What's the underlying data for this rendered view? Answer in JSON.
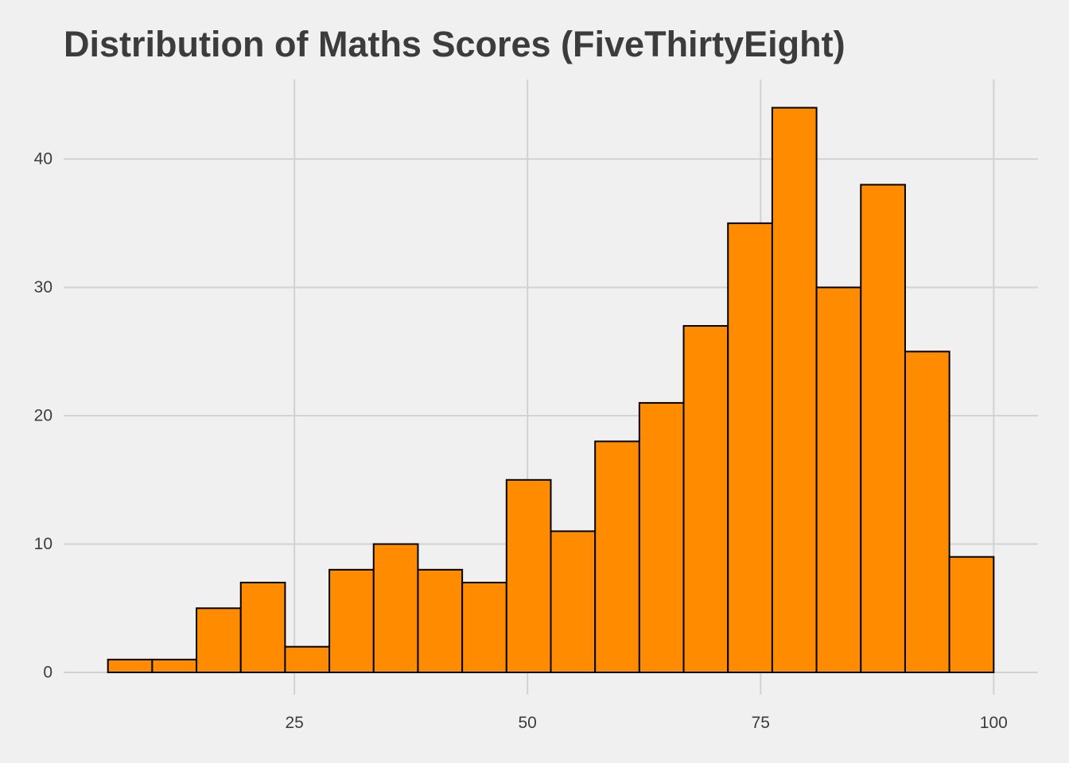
{
  "chart_data": {
    "type": "bar",
    "title": "Distribution of Maths Scores (FiveThirtyEight)",
    "xlabel": "",
    "ylabel": "",
    "bin_width": 4.75,
    "bins": [
      {
        "x_start": 5.0,
        "x_end": 9.75,
        "count": 1
      },
      {
        "x_start": 9.75,
        "x_end": 14.5,
        "count": 1
      },
      {
        "x_start": 14.5,
        "x_end": 19.25,
        "count": 5
      },
      {
        "x_start": 19.25,
        "x_end": 24.0,
        "count": 7
      },
      {
        "x_start": 24.0,
        "x_end": 28.75,
        "count": 2
      },
      {
        "x_start": 28.75,
        "x_end": 33.5,
        "count": 8
      },
      {
        "x_start": 33.5,
        "x_end": 38.25,
        "count": 10
      },
      {
        "x_start": 38.25,
        "x_end": 43.0,
        "count": 8
      },
      {
        "x_start": 43.0,
        "x_end": 47.75,
        "count": 7
      },
      {
        "x_start": 47.75,
        "x_end": 52.5,
        "count": 15
      },
      {
        "x_start": 52.5,
        "x_end": 57.25,
        "count": 11
      },
      {
        "x_start": 57.25,
        "x_end": 62.0,
        "count": 18
      },
      {
        "x_start": 62.0,
        "x_end": 66.75,
        "count": 21
      },
      {
        "x_start": 66.75,
        "x_end": 71.5,
        "count": 27
      },
      {
        "x_start": 71.5,
        "x_end": 76.25,
        "count": 35
      },
      {
        "x_start": 76.25,
        "x_end": 81.0,
        "count": 44
      },
      {
        "x_start": 81.0,
        "x_end": 85.75,
        "count": 30
      },
      {
        "x_start": 85.75,
        "x_end": 90.5,
        "count": 38
      },
      {
        "x_start": 90.5,
        "x_end": 95.25,
        "count": 25
      },
      {
        "x_start": 95.25,
        "x_end": 100.0,
        "count": 9
      }
    ],
    "xlim": [
      0.25,
      104.75
    ],
    "ylim": [
      0,
      46.2
    ],
    "x_ticks": [
      25,
      50,
      75,
      100
    ],
    "y_ticks": [
      0,
      10,
      20,
      30,
      40
    ],
    "grid": true,
    "legend": "none",
    "colors": {
      "background": "#F0F0F0",
      "bar_fill": "#FF8C00",
      "bar_stroke": "#000000",
      "grid": "#D2D2D2",
      "text": "#3C3C3C"
    }
  }
}
